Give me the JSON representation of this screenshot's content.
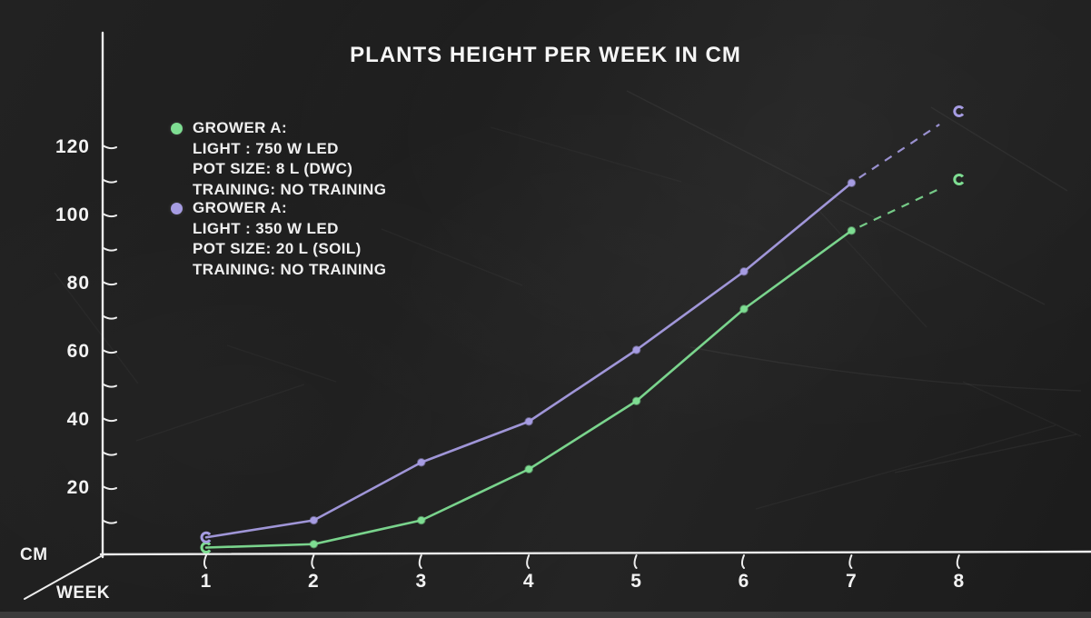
{
  "title": "PLANTS HEIGHT PER WEEK IN CM",
  "axes": {
    "y_unit_label": "CM",
    "x_unit_label": "WEEK"
  },
  "colors": {
    "background": "#1F1F1F",
    "chalk": "#F2F2F2",
    "series_green": "#7EDD92",
    "series_purple": "#A69CE2"
  },
  "legend": [
    {
      "color": "#7EDD92",
      "lines": [
        "GROWER A:",
        "LIGHT : 750 W LED",
        "POT SIZE: 8 L (DWC)",
        "TRAINING: NO TRAINING"
      ]
    },
    {
      "color": "#A69CE2",
      "lines": [
        "GROWER A:",
        "LIGHT : 350 W LED",
        "POT SIZE: 20 L (SOIL)",
        "TRAINING: NO TRAINING"
      ]
    }
  ],
  "chart_data": {
    "type": "line",
    "title": "PLANTS HEIGHT PER WEEK IN CM",
    "x": [
      1,
      2,
      3,
      4,
      5,
      6,
      7,
      8
    ],
    "xlabel": "WEEK",
    "ylabel": "CM",
    "xlim": [
      0,
      8.5
    ],
    "ylim": [
      0,
      140
    ],
    "y_tick_step": 10,
    "y_tick_labels": [
      20,
      40,
      60,
      80,
      100,
      120
    ],
    "grid": false,
    "legend_position": "top-left",
    "series": [
      {
        "name": "GROWER A: LIGHT : 750 W LED, POT SIZE: 8 L (DWC), TRAINING: NO TRAINING",
        "color": "#7EDD92",
        "values": [
          2,
          3,
          10,
          25,
          45,
          72,
          95,
          110
        ],
        "last_segment_style": "dashed",
        "endpoint_marker": "open-ring"
      },
      {
        "name": "GROWER A: LIGHT : 350 W LED, POT SIZE: 20 L (SOIL), TRAINING: NO TRAINING",
        "color": "#A69CE2",
        "values": [
          5,
          10,
          27,
          39,
          60,
          83,
          109,
          130
        ],
        "last_segment_style": "dashed",
        "endpoint_marker": "open-ring"
      }
    ]
  }
}
